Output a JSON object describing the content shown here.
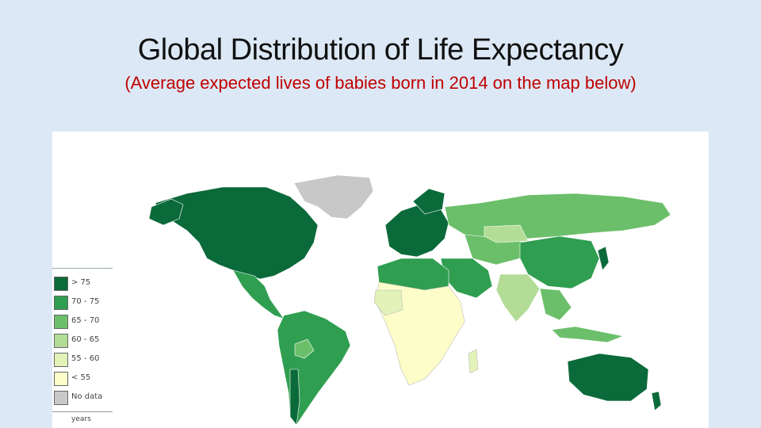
{
  "slide": {
    "title": "Global Distribution of Life Expectancy",
    "subtitle": "(Average expected lives of babies born in 2014 on the map below)"
  },
  "map": {
    "legend": {
      "items": [
        {
          "label": "> 75",
          "color": "#0b6a3a"
        },
        {
          "label": "70 - 75",
          "color": "#2f9e50"
        },
        {
          "label": "65 - 70",
          "color": "#6cbf6a"
        },
        {
          "label": "60 - 65",
          "color": "#b3dd97"
        },
        {
          "label": "55 - 60",
          "color": "#e2f2b8"
        },
        {
          "label": "< 55",
          "color": "#fdfdc9"
        },
        {
          "label": "No data",
          "color": "#c8c8c8"
        }
      ],
      "unit": "years"
    }
  }
}
